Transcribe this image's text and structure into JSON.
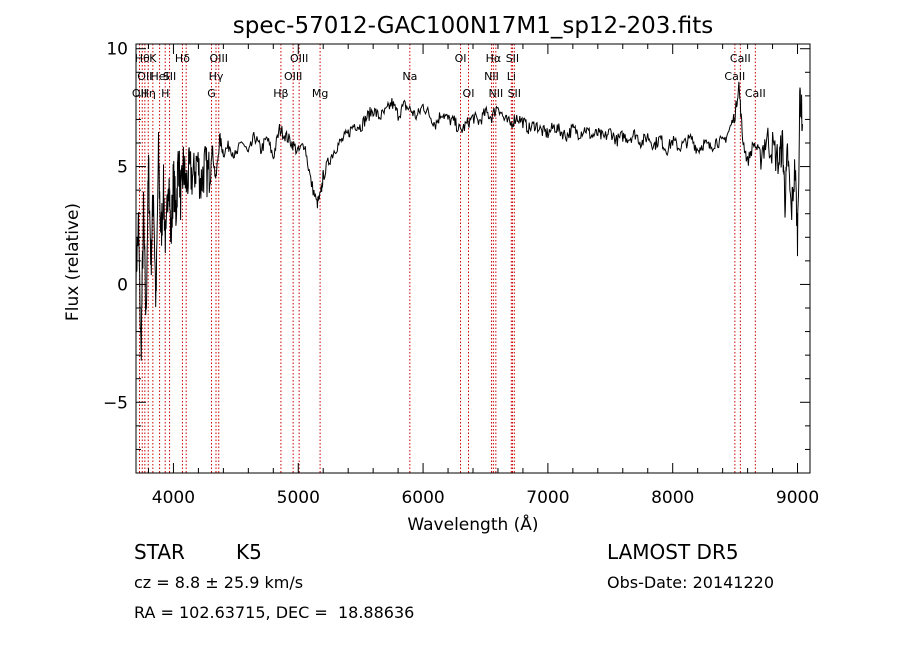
{
  "chart_data": {
    "type": "line",
    "title": "spec-57012-GAC100N17M1_sp12-203.fits",
    "xlabel": "Wavelength (Å)",
    "ylabel": "Flux (relative)",
    "xlim": [
      3700,
      9100
    ],
    "ylim": [
      -8,
      10.2
    ],
    "x_ticks": [
      4000,
      5000,
      6000,
      7000,
      8000,
      9000
    ],
    "x_tick_labels": [
      "4000",
      "5000",
      "6000",
      "7000",
      "8000",
      "9000"
    ],
    "y_ticks": [
      -5,
      0,
      5,
      10
    ],
    "y_tick_labels": [
      "−5",
      "0",
      "5",
      "10"
    ],
    "grid": false,
    "line_color": "#000000",
    "marker_color": "#cc0000",
    "series": [
      {
        "x": [
          3700,
          3720,
          3740,
          3760,
          3780,
          3800,
          3820,
          3840,
          3860,
          3880,
          3900,
          3920,
          3940,
          3960,
          3980,
          4000,
          4020,
          4040,
          4060,
          4080,
          4100,
          4130,
          4160,
          4190,
          4220,
          4250,
          4280,
          4310,
          4340,
          4370,
          4400,
          4450,
          4500,
          4550,
          4600,
          4650,
          4700,
          4750,
          4800,
          4850,
          4900,
          4950,
          5000,
          5050,
          5100,
          5150,
          5180,
          5200,
          5250,
          5300,
          5350,
          5400,
          5450,
          5500,
          5550,
          5600,
          5650,
          5700,
          5750,
          5800,
          5850,
          5900,
          5950,
          6000,
          6050,
          6100,
          6150,
          6200,
          6250,
          6300,
          6350,
          6400,
          6450,
          6500,
          6550,
          6600,
          6650,
          6700,
          6750,
          6800,
          6850,
          6900,
          6950,
          7000,
          7050,
          7100,
          7150,
          7200,
          7250,
          7300,
          7350,
          7400,
          7450,
          7500,
          7550,
          7600,
          7650,
          7700,
          7750,
          7800,
          7850,
          7900,
          7950,
          8000,
          8050,
          8100,
          8150,
          8200,
          8250,
          8300,
          8350,
          8400,
          8450,
          8500,
          8530,
          8560,
          8600,
          8650,
          8700,
          8750,
          8800,
          8850,
          8880,
          8900,
          8920,
          8950,
          8980,
          9000,
          9020,
          9040
        ],
        "y": [
          0.5,
          2.5,
          -3,
          3,
          -1.5,
          5,
          1,
          4,
          -1,
          5.5,
          2,
          4,
          1.5,
          5,
          2,
          4.5,
          3,
          5.5,
          3.5,
          5,
          4.2,
          4.8,
          4.5,
          5.3,
          4.3,
          5,
          4.6,
          5.8,
          4.4,
          6.2,
          5.6,
          5.9,
          5.4,
          6.1,
          5.5,
          6.3,
          5.7,
          6.2,
          5.4,
          6.6,
          6.3,
          6.0,
          5.6,
          6.0,
          4.4,
          3.4,
          3.8,
          4.6,
          5.3,
          5.8,
          6.1,
          6.4,
          6.8,
          6.7,
          7.1,
          7.4,
          7.1,
          7.3,
          7.7,
          7.2,
          7.6,
          7.4,
          7.1,
          7.6,
          7.2,
          6.8,
          7.3,
          7.0,
          6.9,
          6.5,
          6.8,
          7.1,
          6.9,
          7.3,
          7.1,
          7.6,
          7.0,
          6.8,
          7.1,
          6.9,
          6.6,
          6.8,
          6.5,
          6.4,
          6.7,
          6.5,
          6.3,
          6.6,
          6.4,
          6.6,
          6.3,
          6.4,
          6.2,
          6.5,
          6.1,
          6.3,
          6.2,
          6.4,
          6.0,
          6.3,
          5.9,
          6.2,
          5.7,
          6.1,
          5.8,
          6.0,
          6.2,
          5.7,
          6.0,
          5.8,
          6.1,
          6.0,
          6.5,
          7.2,
          8.5,
          6.2,
          5.2,
          6.0,
          5.5,
          6.2,
          5.8,
          5.2,
          6.0,
          3.5,
          5.6,
          3.0,
          5.0,
          2.0,
          8.2,
          6.8
        ]
      }
    ],
    "lines": [
      {
        "x": 3728,
        "label": "OII",
        "row": 3
      },
      {
        "x": 3750,
        "label": "Hθ",
        "row": 1
      },
      {
        "x": 3771,
        "label": "OII",
        "row": 2
      },
      {
        "x": 3798,
        "label": "Hη",
        "row": 3
      },
      {
        "x": 3835,
        "label": "K",
        "row": 1
      },
      {
        "x": 3889,
        "label": "HeI",
        "row": 2
      },
      {
        "x": 3934,
        "label": "H",
        "row": 3
      },
      {
        "x": 3969,
        "label": "SII",
        "row": 2
      },
      {
        "x": 4072,
        "label": "Hδ",
        "row": 1
      },
      {
        "x": 4102,
        "label": "",
        "row": 0
      },
      {
        "x": 4305,
        "label": "G",
        "row": 3
      },
      {
        "x": 4341,
        "label": "Hγ",
        "row": 2
      },
      {
        "x": 4363,
        "label": "OIII",
        "row": 1
      },
      {
        "x": 4861,
        "label": "Hβ",
        "row": 3
      },
      {
        "x": 4959,
        "label": "OIII",
        "row": 2
      },
      {
        "x": 5007,
        "label": "OIII",
        "row": 1
      },
      {
        "x": 5175,
        "label": "Mg",
        "row": 3
      },
      {
        "x": 5894,
        "label": "Na",
        "row": 2
      },
      {
        "x": 6300,
        "label": "OI",
        "row": 1
      },
      {
        "x": 6364,
        "label": "OI",
        "row": 3
      },
      {
        "x": 6548,
        "label": "NII",
        "row": 2
      },
      {
        "x": 6563,
        "label": "Hα",
        "row": 1
      },
      {
        "x": 6583,
        "label": "NII",
        "row": 3
      },
      {
        "x": 6707,
        "label": "Li",
        "row": 2
      },
      {
        "x": 6716,
        "label": "SII",
        "row": 1
      },
      {
        "x": 6731,
        "label": "SII",
        "row": 3
      },
      {
        "x": 8498,
        "label": "CaII",
        "row": 2
      },
      {
        "x": 8542,
        "label": "CaII",
        "row": 1
      },
      {
        "x": 8662,
        "label": "CaII",
        "row": 3
      }
    ]
  },
  "info": {
    "class": "STAR",
    "subclass": "K5",
    "cz": "cz = 8.8 ± 25.9 km/s",
    "radec": "RA = 102.63715, DEC =  18.88636",
    "survey": "LAMOST DR5",
    "obsdate": "Obs-Date: 20141220"
  }
}
